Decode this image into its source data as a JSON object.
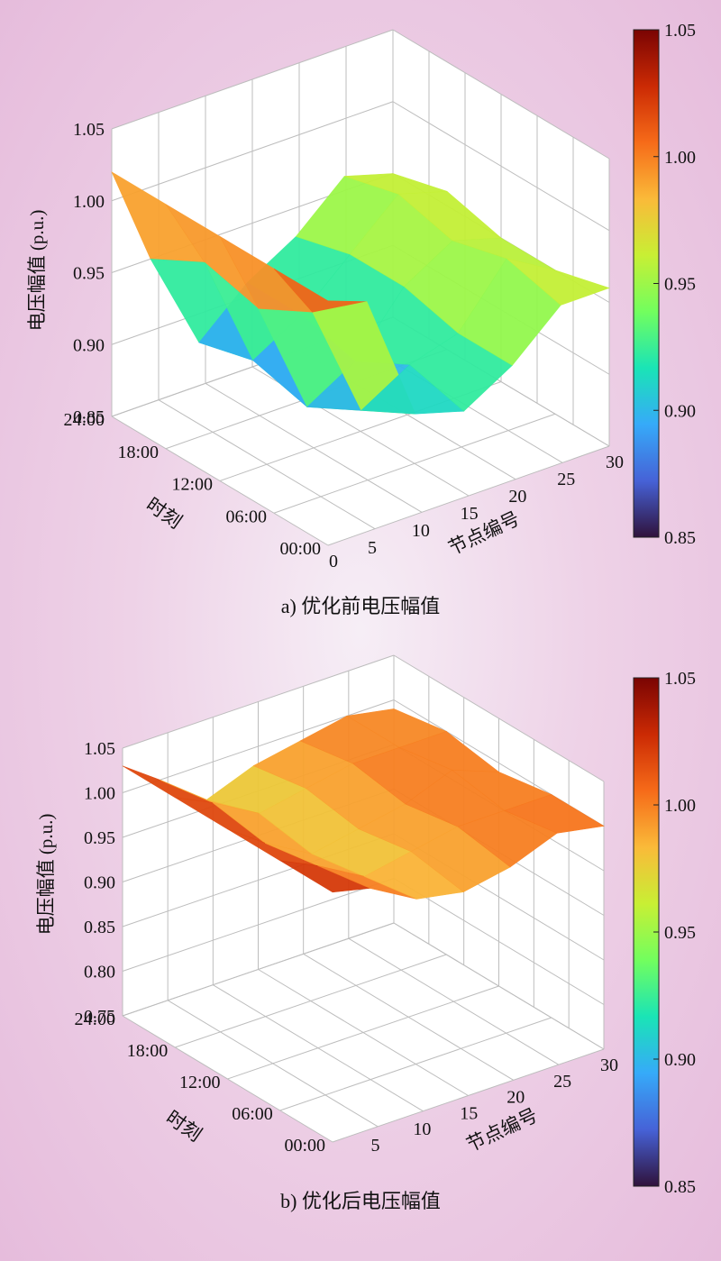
{
  "chart_data": [
    {
      "type": "surface3d",
      "caption": "a) 优化前电压幅值",
      "xlabel": "节点编号",
      "ylabel": "时刻",
      "zlabel": "电压幅值 (p.u.)",
      "xticks": [
        "0",
        "5",
        "10",
        "15",
        "20",
        "25",
        "30"
      ],
      "yticks": [
        "00:00",
        "06:00",
        "12:00",
        "18:00",
        "24:00"
      ],
      "zticks": [
        "0.85",
        "0.90",
        "0.95",
        "1.00",
        "1.05"
      ],
      "zlim": [
        0.85,
        1.05
      ],
      "colorbar": {
        "ticks": [
          "1.05",
          "1.00",
          "0.95",
          "0.90",
          "0.85"
        ],
        "range": [
          0.85,
          1.05
        ]
      },
      "colormap": [
        "#30123b",
        "#4662d7",
        "#36aaf9",
        "#1ae4b6",
        "#72fe5e",
        "#c8ef34",
        "#faba39",
        "#f66b19",
        "#cb2a04",
        "#7a0403"
      ],
      "grid": true,
      "x": [
        1,
        5,
        10,
        15,
        20,
        25,
        30
      ],
      "y": [
        "00:00",
        "06:00",
        "12:00",
        "18:00",
        "24:00"
      ],
      "z": [
        [
          1.02,
          1.01,
          0.92,
          0.91,
          0.93,
          0.96,
          0.96
        ],
        [
          1.02,
          0.98,
          0.9,
          0.92,
          0.93,
          0.97,
          0.95
        ],
        [
          1.02,
          0.96,
          0.88,
          0.9,
          0.94,
          0.96,
          0.95
        ],
        [
          1.02,
          0.97,
          0.89,
          0.91,
          0.94,
          0.97,
          0.96
        ],
        [
          1.02,
          0.95,
          0.88,
          0.91,
          0.93,
          0.96,
          0.95
        ]
      ]
    },
    {
      "type": "surface3d",
      "caption": "b) 优化后电压幅值",
      "xlabel": "节点编号",
      "ylabel": "时刻",
      "zlabel": "电压幅值 (p.u.)",
      "xticks": [
        "5",
        "10",
        "15",
        "20",
        "25",
        "30"
      ],
      "yticks": [
        "00:00",
        "06:00",
        "12:00",
        "18:00",
        "24:00"
      ],
      "zticks": [
        "0.75",
        "0.80",
        "0.85",
        "0.90",
        "0.95",
        "1.00",
        "1.05"
      ],
      "zlim": [
        0.75,
        1.05
      ],
      "colorbar": {
        "ticks": [
          "1.05",
          "1.00",
          "0.95",
          "0.90",
          "0.85"
        ],
        "range": [
          0.85,
          1.05
        ]
      },
      "colormap": [
        "#30123b",
        "#4662d7",
        "#36aaf9",
        "#1ae4b6",
        "#72fe5e",
        "#c8ef34",
        "#faba39",
        "#f66b19",
        "#cb2a04",
        "#7a0403"
      ],
      "grid": true,
      "x": [
        1,
        5,
        10,
        15,
        20,
        25,
        30
      ],
      "y": [
        "00:00",
        "06:00",
        "12:00",
        "18:00",
        "24:00"
      ],
      "z": [
        [
          1.03,
          1.02,
          0.99,
          0.98,
          0.99,
          1.01,
          1.0
        ],
        [
          1.03,
          1.01,
          0.98,
          0.99,
          1.0,
          1.0,
          1.0
        ],
        [
          1.03,
          1.0,
          0.97,
          0.98,
          0.99,
          1.01,
          0.99
        ],
        [
          1.03,
          1.01,
          0.98,
          0.99,
          1.0,
          1.0,
          1.0
        ],
        [
          1.03,
          1.0,
          0.96,
          0.98,
          0.99,
          1.0,
          0.99
        ]
      ]
    }
  ]
}
